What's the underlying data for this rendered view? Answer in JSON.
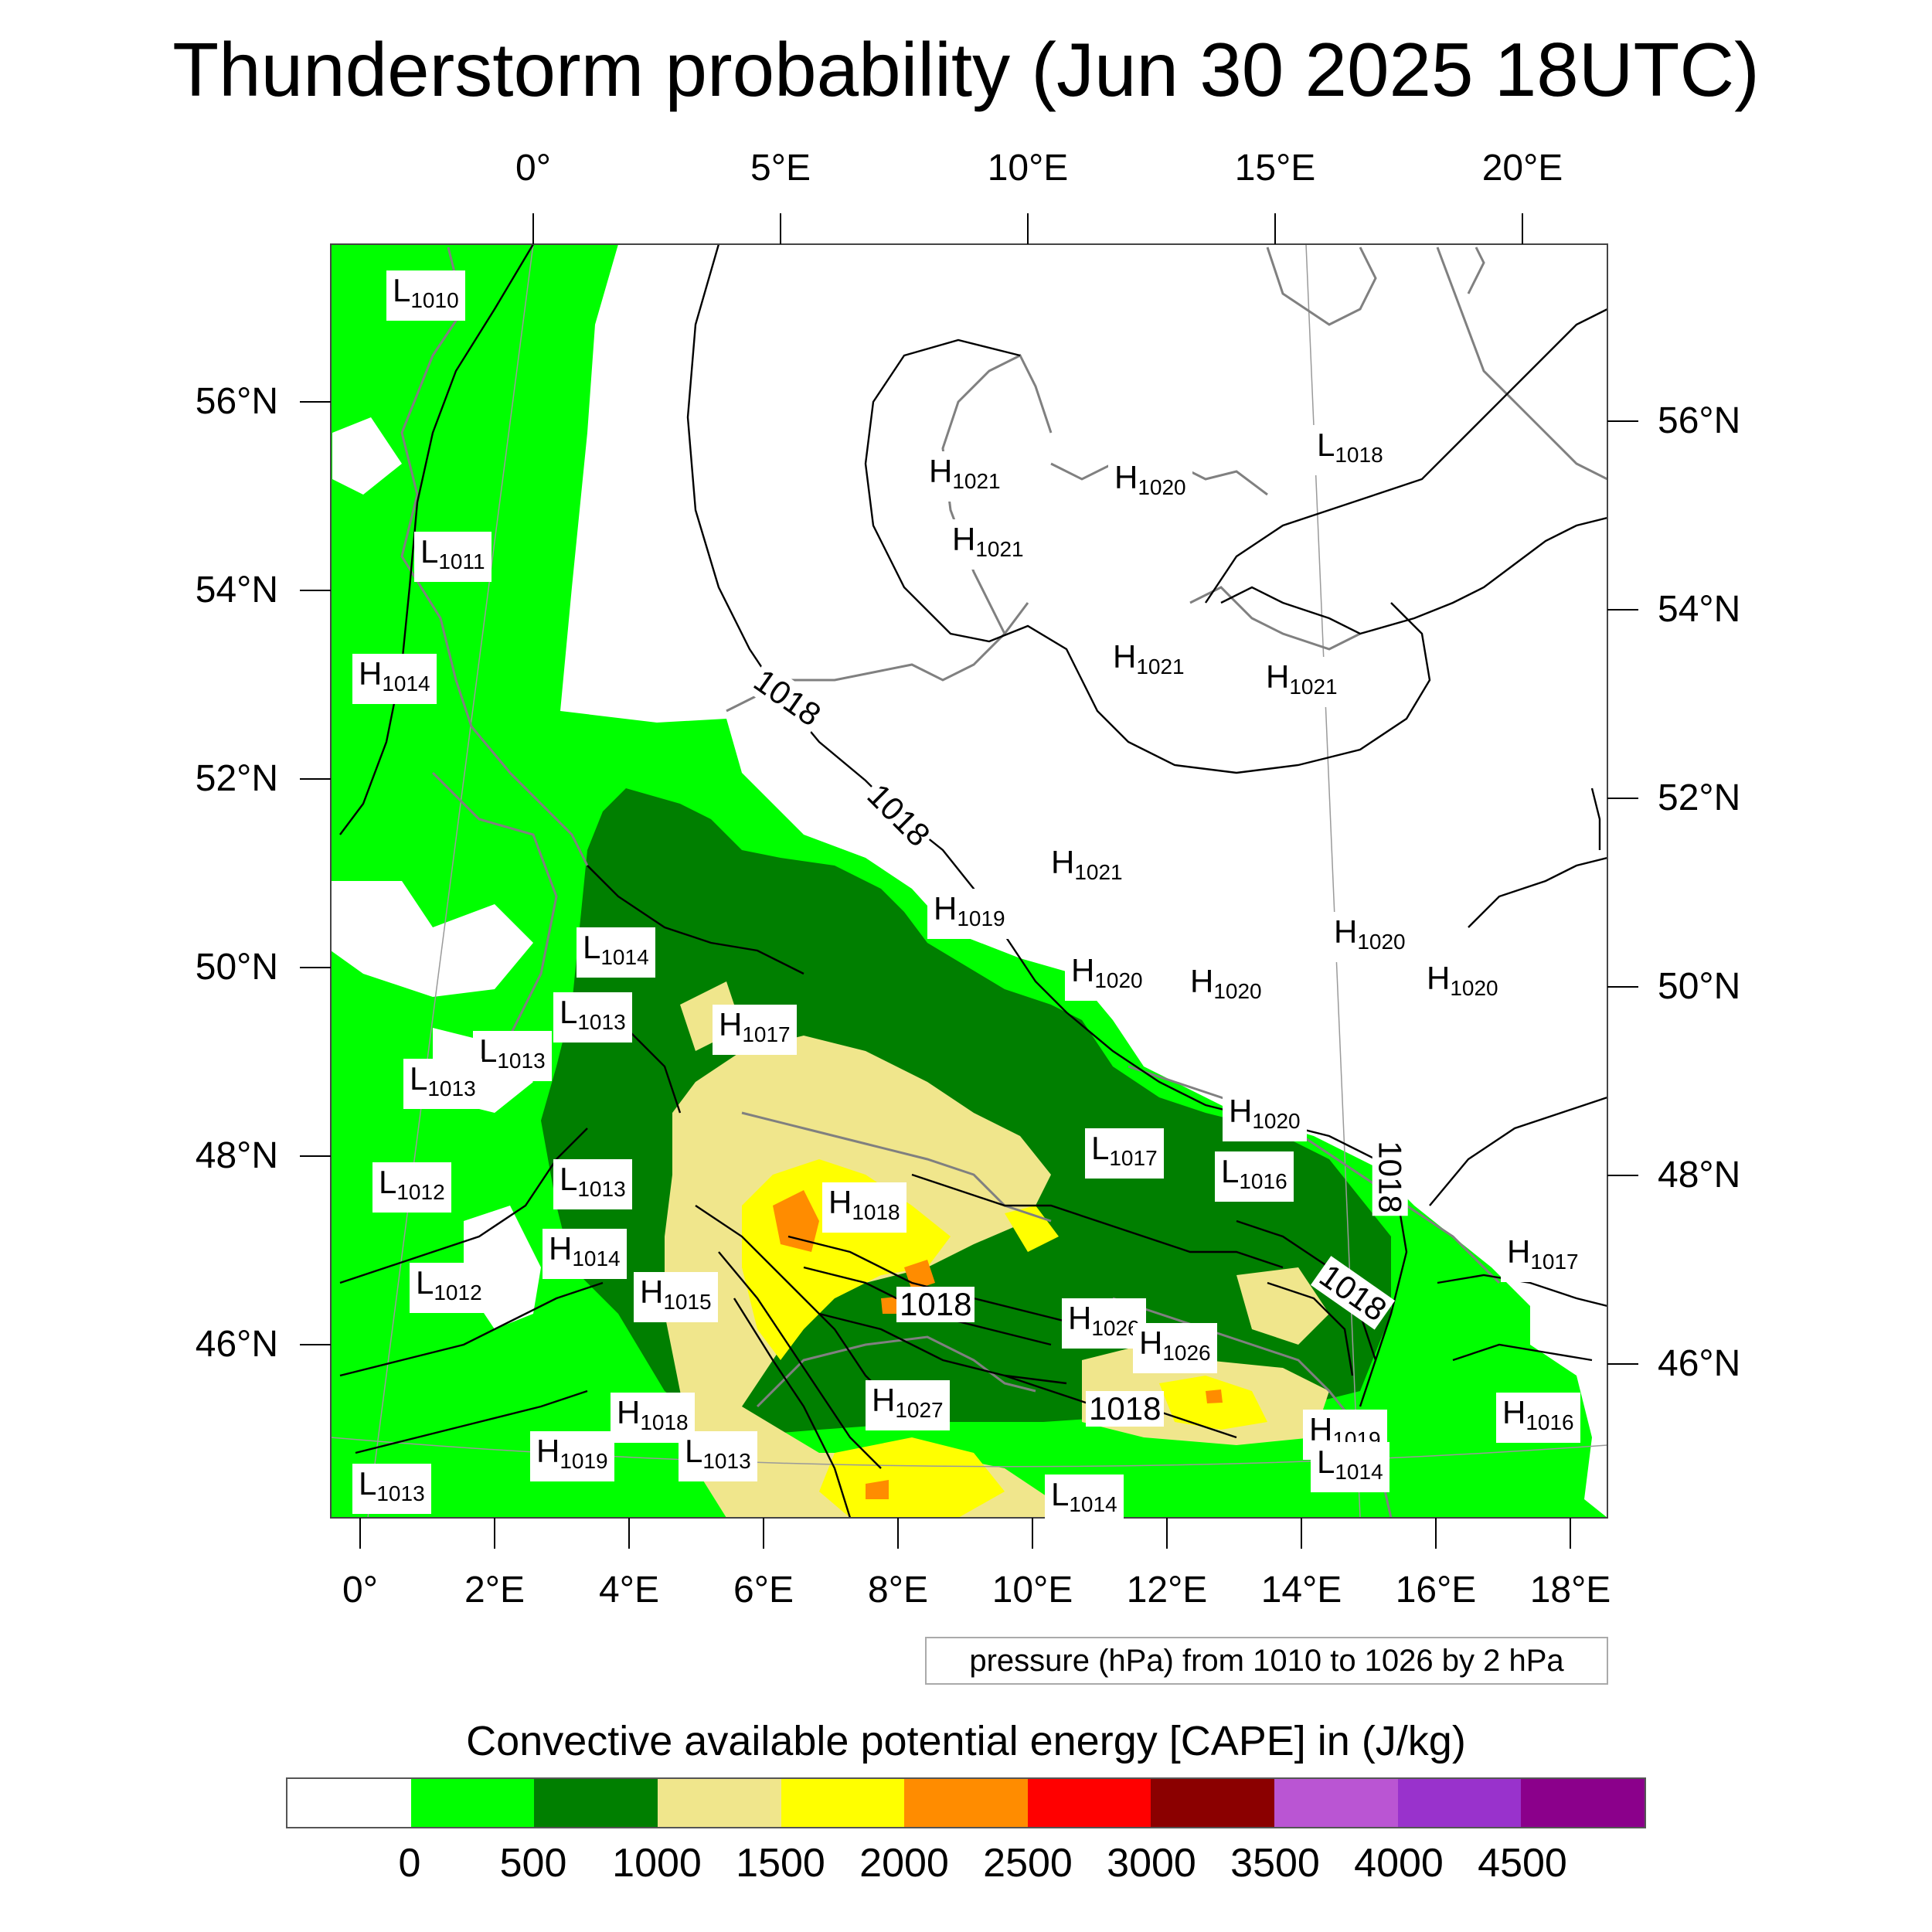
{
  "title": "Thunderstorm probability (Jun 30 2025 18UTC)",
  "axes": {
    "top_lon_labels": [
      "0°",
      "5°E",
      "10°E",
      "15°E",
      "20°E"
    ],
    "bottom_lon_labels": [
      "0°",
      "2°E",
      "4°E",
      "6°E",
      "8°E",
      "10°E",
      "12°E",
      "14°E",
      "16°E",
      "18°E"
    ],
    "left_lat_labels": [
      "56°N",
      "54°N",
      "52°N",
      "50°N",
      "48°N",
      "46°N"
    ],
    "right_lat_labels": [
      "56°N",
      "54°N",
      "52°N",
      "50°N",
      "48°N",
      "46°N"
    ]
  },
  "contour_note": "pressure (hPa) from 1010 to 1026 by 2 hPa",
  "contour_labels": [
    "1018",
    "1018",
    "1018",
    "1018",
    "1018",
    "1018"
  ],
  "pressure_centers": [
    {
      "type": "L",
      "value": "1010"
    },
    {
      "type": "L",
      "value": "1011"
    },
    {
      "type": "H",
      "value": "1014"
    },
    {
      "type": "H",
      "value": "1021"
    },
    {
      "type": "H",
      "value": "1021"
    },
    {
      "type": "H",
      "value": "1020"
    },
    {
      "type": "L",
      "value": "1018"
    },
    {
      "type": "H",
      "value": "1021"
    },
    {
      "type": "H",
      "value": "1021"
    },
    {
      "type": "H",
      "value": "1021"
    },
    {
      "type": "H",
      "value": "1019"
    },
    {
      "type": "L",
      "value": "1014"
    },
    {
      "type": "L",
      "value": "1013"
    },
    {
      "type": "H",
      "value": "1017"
    },
    {
      "type": "L",
      "value": "1013"
    },
    {
      "type": "L",
      "value": "1013"
    },
    {
      "type": "H",
      "value": "1020"
    },
    {
      "type": "H",
      "value": "1020"
    },
    {
      "type": "H",
      "value": "1020"
    },
    {
      "type": "H",
      "value": "1020"
    },
    {
      "type": "H",
      "value": "1020"
    },
    {
      "type": "L",
      "value": "1017"
    },
    {
      "type": "L",
      "value": "1016"
    },
    {
      "type": "L",
      "value": "1012"
    },
    {
      "type": "L",
      "value": "1013"
    },
    {
      "type": "H",
      "value": "1018"
    },
    {
      "type": "H",
      "value": "1014"
    },
    {
      "type": "L",
      "value": "1012"
    },
    {
      "type": "H",
      "value": "1026"
    },
    {
      "type": "H",
      "value": "1026"
    },
    {
      "type": "H",
      "value": "1017"
    },
    {
      "type": "H",
      "value": "1027"
    },
    {
      "type": "H",
      "value": "1018"
    },
    {
      "type": "H",
      "value": "1019"
    },
    {
      "type": "L",
      "value": "1013"
    },
    {
      "type": "H",
      "value": "1019"
    },
    {
      "type": "L",
      "value": "1014"
    },
    {
      "type": "H",
      "value": "1016"
    },
    {
      "type": "L",
      "value": "1013"
    },
    {
      "type": "L",
      "value": "1014"
    },
    {
      "type": "H",
      "value": "1015"
    }
  ],
  "colorbar": {
    "title": "Convective available potential energy [CAPE] in (J/kg)",
    "colors": [
      "#ffffff",
      "#00ff00",
      "#007f00",
      "#f0e68c",
      "#ffff00",
      "#ff8c00",
      "#ff0000",
      "#8b0000",
      "#ba55d3",
      "#9932cc",
      "#8b008b"
    ],
    "labels": [
      "0",
      "500",
      "1000",
      "1500",
      "2000",
      "2500",
      "3000",
      "3500",
      "4000",
      "4500"
    ]
  }
}
